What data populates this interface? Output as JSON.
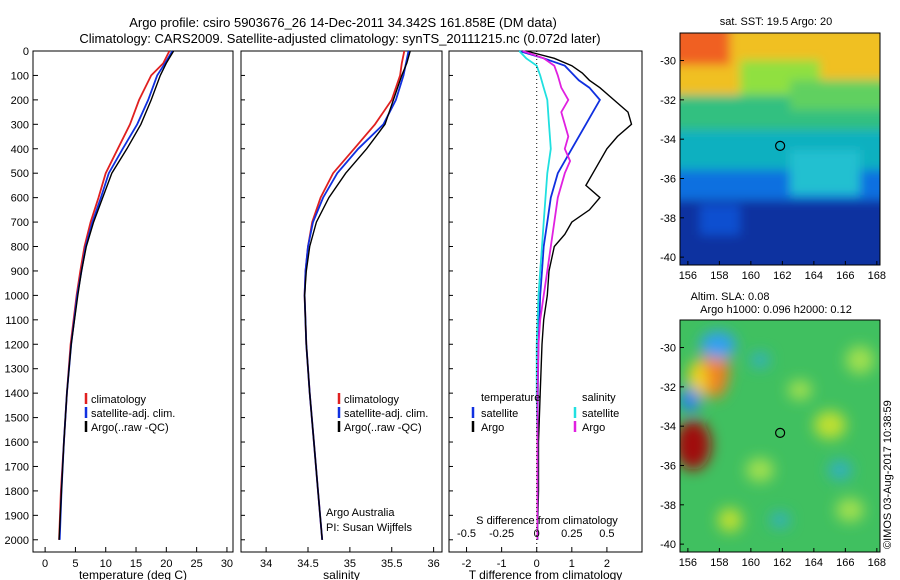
{
  "header": {
    "title_line1": "Argo profile: csiro 5903676_26 14-Dec-2011 34.342S 161.858E (DM data)",
    "title_line2": "Climatology: CARS2009. Satellite-adjusted climatology: synTS_20111215.nc (0.072d later)"
  },
  "watermark": "©IMOS 03-Aug-2017 10:38:59",
  "credit": {
    "line1": "Argo Australia",
    "line2": "PI: Susan Wijffels"
  },
  "colors": {
    "climatology": "#e02020",
    "satellite": "#1030e0",
    "argo": "#000000",
    "satellite_s": "#20e0e0",
    "argo_s": "#e020e0"
  },
  "chart_data": [
    {
      "type": "line",
      "id": "temperature",
      "xlabel": "temperature (deg C)",
      "ylabel": "",
      "xlim": [
        -2,
        31
      ],
      "ylim": [
        2050,
        0
      ],
      "xticks": [
        0,
        5,
        10,
        15,
        20,
        25,
        30
      ],
      "yticks": [
        0,
        100,
        200,
        300,
        400,
        500,
        600,
        700,
        800,
        900,
        1000,
        1100,
        1200,
        1300,
        1400,
        1500,
        1600,
        1700,
        1800,
        1900,
        2000
      ],
      "legend": [
        "climatology",
        "satellite-adj. clim.",
        "Argo(..raw -QC)"
      ],
      "legend_position": "bottom-left",
      "series": [
        {
          "name": "climatology",
          "color": "#e02020",
          "depth": [
            0,
            50,
            100,
            200,
            300,
            400,
            500,
            600,
            700,
            800,
            900,
            1000,
            1200,
            1400,
            1600,
            1800,
            2000
          ],
          "values": [
            20.5,
            19.5,
            17.5,
            15.5,
            14.0,
            12.0,
            10.0,
            8.8,
            7.5,
            6.5,
            5.8,
            5.2,
            4.2,
            3.6,
            3.1,
            2.6,
            2.3
          ]
        },
        {
          "name": "satellite-adj. clim.",
          "color": "#1030e0",
          "depth": [
            0,
            50,
            100,
            200,
            300,
            400,
            500,
            600,
            700,
            800,
            900,
            1000,
            1200,
            1400,
            1600,
            1800,
            2000
          ],
          "values": [
            21.0,
            19.8,
            18.5,
            17.0,
            15.2,
            12.8,
            10.5,
            9.2,
            7.8,
            6.7,
            6.0,
            5.3,
            4.3,
            3.6,
            3.1,
            2.7,
            2.4
          ]
        },
        {
          "name": "Argo(..raw -QC)",
          "color": "#000000",
          "depth": [
            0,
            50,
            100,
            200,
            300,
            400,
            500,
            600,
            700,
            800,
            900,
            1000,
            1200,
            1400,
            1600,
            1800,
            2000
          ],
          "values": [
            21.2,
            20.0,
            19.0,
            17.5,
            15.8,
            13.5,
            11.0,
            9.5,
            8.0,
            6.8,
            6.0,
            5.4,
            4.3,
            3.6,
            3.1,
            2.7,
            2.3
          ]
        }
      ]
    },
    {
      "type": "line",
      "id": "salinity",
      "xlabel": "salinity",
      "ylabel": "",
      "xlim": [
        33.7,
        36.1
      ],
      "ylim": [
        2050,
        0
      ],
      "xticks": [
        34,
        34.5,
        35,
        35.5,
        36
      ],
      "legend": [
        "climatology",
        "satellite-adj. clim.",
        "Argo(..raw -QC)"
      ],
      "legend_position": "bottom-right",
      "series": [
        {
          "name": "climatology",
          "color": "#e02020",
          "depth": [
            0,
            50,
            100,
            200,
            300,
            400,
            500,
            600,
            700,
            800,
            900,
            1000,
            1200,
            1400,
            1600,
            1800,
            2000
          ],
          "values": [
            35.65,
            35.62,
            35.6,
            35.5,
            35.3,
            35.05,
            34.8,
            34.65,
            34.55,
            34.5,
            34.47,
            34.46,
            34.48,
            34.52,
            34.57,
            34.62,
            34.67
          ]
        },
        {
          "name": "satellite-adj. clim.",
          "color": "#1030e0",
          "depth": [
            0,
            50,
            100,
            200,
            300,
            400,
            500,
            600,
            700,
            800,
            900,
            1000,
            1200,
            1400,
            1600,
            1800,
            2000
          ],
          "values": [
            35.7,
            35.67,
            35.64,
            35.55,
            35.4,
            35.1,
            34.85,
            34.68,
            34.56,
            34.5,
            34.47,
            34.46,
            34.48,
            34.52,
            34.57,
            34.62,
            34.67
          ]
        },
        {
          "name": "Argo(..raw -QC)",
          "color": "#000000",
          "depth": [
            0,
            50,
            100,
            200,
            300,
            400,
            500,
            600,
            700,
            800,
            900,
            1000,
            1200,
            1400,
            1600,
            1800,
            2000
          ],
          "values": [
            35.72,
            35.68,
            35.62,
            35.52,
            35.42,
            35.2,
            34.95,
            34.75,
            34.6,
            34.52,
            34.48,
            34.46,
            34.48,
            34.52,
            34.57,
            34.62,
            34.67
          ]
        }
      ]
    },
    {
      "type": "line",
      "id": "difference",
      "xlabel": "T difference from climatology",
      "xlabel_top": "S difference from climatology",
      "xlim": [
        -2.5,
        3.0
      ],
      "ylim": [
        2050,
        0
      ],
      "xticks": [
        -2,
        -1,
        0,
        1,
        2
      ],
      "xticks_s": [
        {
          "label": "-0.5",
          "at": -2
        },
        {
          "label": "-0.25",
          "at": -1
        },
        {
          "label": "0",
          "at": 0
        },
        {
          "label": "0.25",
          "at": 1
        },
        {
          "label": "0.5",
          "at": 2
        }
      ],
      "legend_temperature": {
        "title": "temperature",
        "items": [
          "satellite",
          "Argo"
        ]
      },
      "legend_salinity": {
        "title": "salinity",
        "items": [
          "satellite",
          "Argo"
        ]
      },
      "series": [
        {
          "name": "T satellite",
          "color": "#1030e0",
          "depth": [
            0,
            30,
            60,
            90,
            120,
            150,
            200,
            250,
            300,
            400,
            500,
            600,
            700,
            800,
            900,
            1000,
            1200,
            1400,
            1600,
            1800,
            2000
          ],
          "values": [
            -0.5,
            0.2,
            0.8,
            1.0,
            1.2,
            1.5,
            1.8,
            1.6,
            1.4,
            1.0,
            0.6,
            0.4,
            0.3,
            0.2,
            0.15,
            0.1,
            0.05,
            0.03,
            0.02,
            0.02,
            0.02
          ]
        },
        {
          "name": "T Argo",
          "color": "#000000",
          "depth": [
            0,
            30,
            60,
            90,
            120,
            150,
            200,
            250,
            300,
            350,
            400,
            500,
            550,
            600,
            650,
            700,
            750,
            800,
            900,
            1000,
            1100,
            1200,
            1400,
            1600,
            1800,
            2000
          ],
          "values": [
            -0.3,
            0.5,
            1.0,
            1.3,
            1.5,
            1.8,
            2.2,
            2.6,
            2.7,
            2.3,
            2.0,
            1.6,
            1.4,
            1.8,
            1.5,
            1.0,
            0.8,
            0.5,
            0.35,
            0.3,
            0.2,
            0.15,
            0.1,
            0.05,
            0.05,
            0.02
          ]
        },
        {
          "name": "S satellite",
          "color": "#20e0e0",
          "depth": [
            0,
            30,
            60,
            100,
            150,
            200,
            300,
            400,
            500,
            600,
            700,
            800,
            900,
            1000,
            1200,
            1400,
            1600,
            1800,
            2000
          ],
          "values": [
            -0.5,
            -0.3,
            0.0,
            0.1,
            0.2,
            0.3,
            0.35,
            0.4,
            0.3,
            0.25,
            0.2,
            0.15,
            0.1,
            0.05,
            0.0,
            0.0,
            0.02,
            0.02,
            0.02
          ]
        },
        {
          "name": "S Argo",
          "color": "#e020e0",
          "depth": [
            0,
            30,
            60,
            100,
            150,
            200,
            250,
            300,
            350,
            400,
            450,
            500,
            600,
            700,
            800,
            900,
            1000,
            1100,
            1200,
            1400,
            1600,
            1800,
            2000
          ],
          "values": [
            -0.4,
            0.2,
            0.5,
            0.6,
            0.7,
            0.9,
            0.7,
            0.8,
            0.9,
            0.8,
            0.95,
            0.8,
            0.6,
            0.5,
            0.4,
            0.3,
            0.2,
            0.1,
            0.05,
            0.02,
            0.02,
            0.02,
            0.02
          ]
        }
      ]
    },
    {
      "type": "heatmap",
      "id": "sst_map",
      "title": "sat. SST: 19.5 Argo: 20",
      "xlim": [
        155.5,
        168.2
      ],
      "ylim": [
        -40.4,
        -28.6
      ],
      "xticks": [
        156,
        158,
        160,
        162,
        164,
        166,
        168
      ],
      "yticks": [
        -30,
        -32,
        -34,
        -36,
        -38,
        -40
      ],
      "marker": {
        "lon": 161.858,
        "lat": -34.342
      }
    },
    {
      "type": "heatmap",
      "id": "sla_map",
      "title_line1": "Altim. SLA: 0.08",
      "title_line2": "Argo h1000: 0.096 h2000: 0.12",
      "xlim": [
        155.5,
        168.2
      ],
      "ylim": [
        -40.4,
        -28.6
      ],
      "xticks": [
        156,
        158,
        160,
        162,
        164,
        166,
        168
      ],
      "yticks": [
        -30,
        -32,
        -34,
        -36,
        -38,
        -40
      ],
      "marker": {
        "lon": 161.858,
        "lat": -34.342
      }
    }
  ]
}
